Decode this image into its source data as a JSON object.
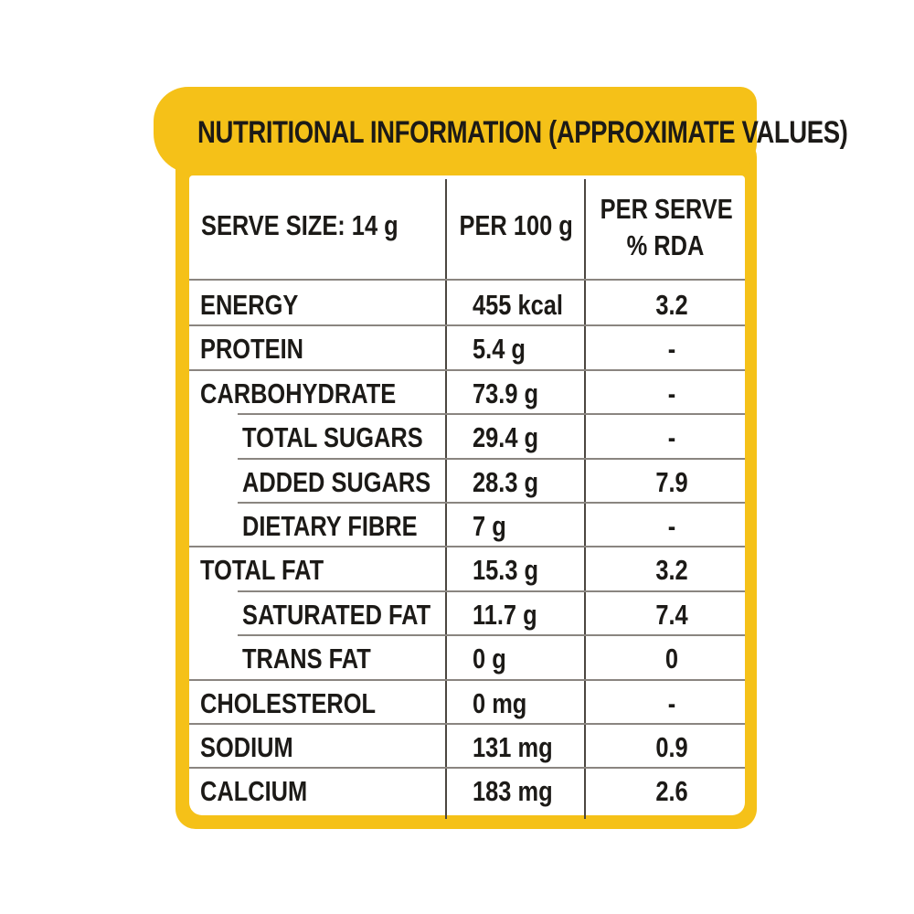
{
  "title": "NUTRITIONAL INFORMATION (APPROXIMATE VALUES)",
  "colors": {
    "accent": "#f5c118",
    "text": "#1c1a17",
    "background": "#ffffff",
    "grid": "#4b4640"
  },
  "table": {
    "headers": {
      "serve_size": "SERVE SIZE: 14 g",
      "per_100g": "PER 100 g",
      "per_serve_line1": "PER SERVE",
      "per_serve_line2": "% RDA"
    },
    "rows": [
      {
        "label": "ENERGY",
        "indented": false,
        "per_100g": "455 kcal",
        "rda": "3.2"
      },
      {
        "label": "PROTEIN",
        "indented": false,
        "per_100g": "5.4 g",
        "rda": "-"
      },
      {
        "label": "CARBOHYDRATE",
        "indented": false,
        "per_100g": "73.9 g",
        "rda": "-"
      },
      {
        "label": "TOTAL SUGARS",
        "indented": true,
        "per_100g": "29.4 g",
        "rda": "-"
      },
      {
        "label": "ADDED SUGARS",
        "indented": true,
        "per_100g": "28.3 g",
        "rda": "7.9"
      },
      {
        "label": "DIETARY FIBRE",
        "indented": true,
        "per_100g": "7 g",
        "rda": "-"
      },
      {
        "label": "TOTAL FAT",
        "indented": false,
        "per_100g": "15.3 g",
        "rda": "3.2"
      },
      {
        "label": "SATURATED FAT",
        "indented": true,
        "per_100g": "11.7 g",
        "rda": "7.4"
      },
      {
        "label": "TRANS FAT",
        "indented": true,
        "per_100g": "0 g",
        "rda": "0"
      },
      {
        "label": "CHOLESTEROL",
        "indented": false,
        "per_100g": "0 mg",
        "rda": "-"
      },
      {
        "label": "SODIUM",
        "indented": false,
        "per_100g": "131 mg",
        "rda": "0.9"
      },
      {
        "label": "CALCIUM",
        "indented": false,
        "per_100g": "183 mg",
        "rda": "2.6"
      }
    ]
  }
}
